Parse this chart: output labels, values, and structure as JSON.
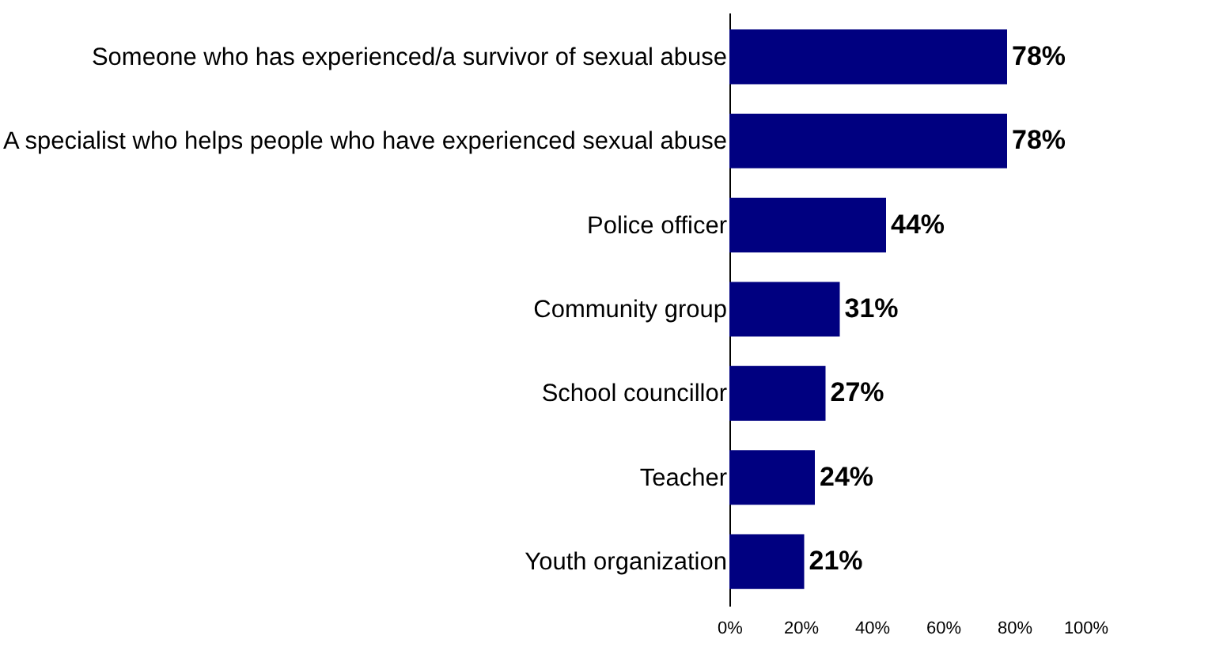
{
  "chart_data": {
    "type": "bar",
    "orientation": "horizontal",
    "categories": [
      "Someone who has experienced/a survivor of sexual abuse",
      "A specialist who helps people who have experienced sexual abuse",
      "Police officer",
      "Community group",
      "School councillor",
      "Teacher",
      "Youth organization"
    ],
    "values": [
      78,
      78,
      44,
      31,
      27,
      24,
      21
    ],
    "value_labels": [
      "78%",
      "78%",
      "44%",
      "31%",
      "27%",
      "24%",
      "21%"
    ],
    "color": "#000080",
    "xlim": [
      0,
      100
    ],
    "xticks": [
      {
        "value": 0,
        "label": "0%"
      },
      {
        "value": 20,
        "label": "20%"
      },
      {
        "value": 40,
        "label": "40%"
      },
      {
        "value": 60,
        "label": "60%"
      },
      {
        "value": 80,
        "label": "80%"
      },
      {
        "value": 100,
        "label": "100%"
      }
    ],
    "grid": false
  }
}
